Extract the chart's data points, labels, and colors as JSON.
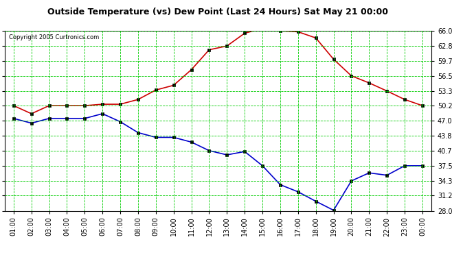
{
  "title": "Outside Temperature (vs) Dew Point (Last 24 Hours) Sat May 21 00:00",
  "copyright": "Copyright 2005 Curtronics.com",
  "x_labels": [
    "01:00",
    "02:00",
    "03:00",
    "04:00",
    "05:00",
    "06:00",
    "07:00",
    "08:00",
    "09:00",
    "10:00",
    "11:00",
    "12:00",
    "13:00",
    "14:00",
    "15:00",
    "16:00",
    "17:00",
    "18:00",
    "19:00",
    "20:00",
    "21:00",
    "22:00",
    "23:00",
    "00:00"
  ],
  "temp_values": [
    50.2,
    48.5,
    50.2,
    50.2,
    50.2,
    50.5,
    50.5,
    51.5,
    53.5,
    54.5,
    57.8,
    62.0,
    62.8,
    65.5,
    66.5,
    66.0,
    65.8,
    64.5,
    60.0,
    56.5,
    55.0,
    53.3,
    51.5,
    50.2
  ],
  "dew_values": [
    47.5,
    46.5,
    47.5,
    47.5,
    47.5,
    48.5,
    46.8,
    44.5,
    43.5,
    43.5,
    42.5,
    40.7,
    39.8,
    40.5,
    37.5,
    33.5,
    32.0,
    30.0,
    28.1,
    34.3,
    36.0,
    35.5,
    37.5,
    37.5
  ],
  "temp_color": "#cc0000",
  "dew_color": "#0000cc",
  "background_color": "#ffffff",
  "plot_bg_color": "#ffffff",
  "grid_color": "#00cc00",
  "ylim_min": 28.0,
  "ylim_max": 66.0,
  "ytick_values": [
    28.0,
    31.2,
    34.3,
    37.5,
    40.7,
    43.8,
    47.0,
    50.2,
    53.3,
    56.5,
    59.7,
    62.8,
    66.0
  ],
  "marker": "s",
  "marker_size": 2.5,
  "linewidth": 1.2,
  "title_fontsize": 9,
  "tick_fontsize": 7,
  "copyright_fontsize": 6
}
